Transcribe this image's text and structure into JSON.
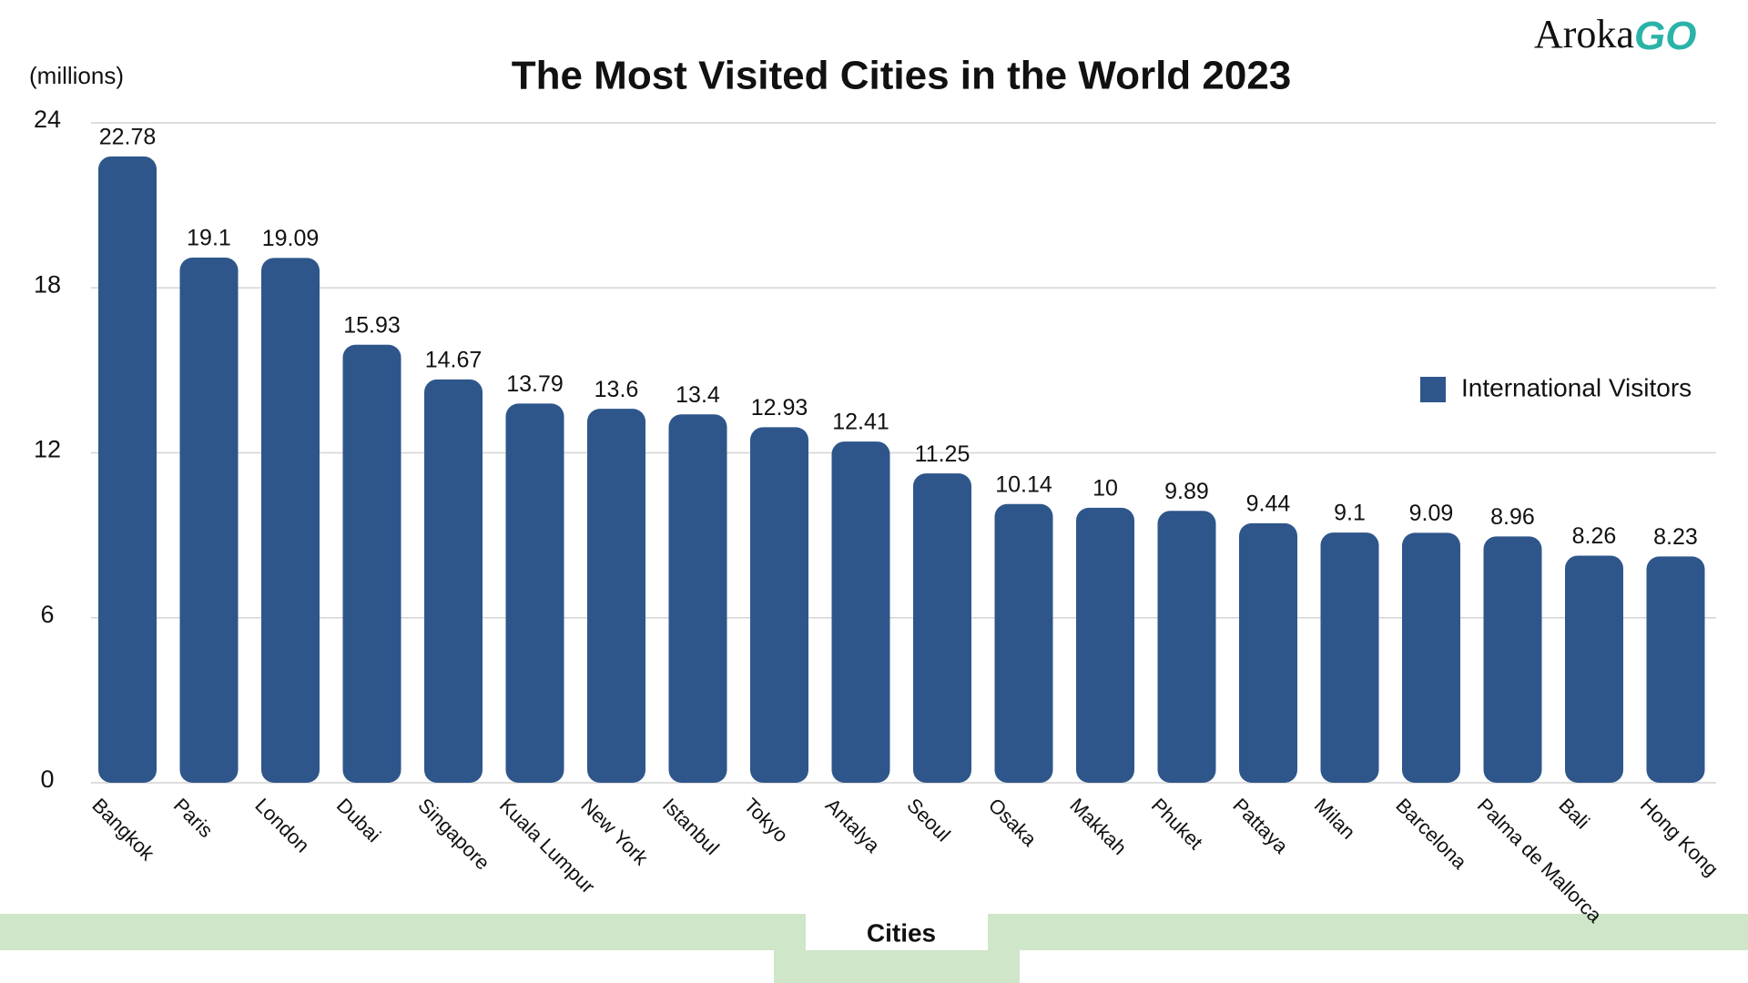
{
  "chart_data": {
    "type": "bar",
    "title": "The Most Visited Cities in the World 2023",
    "y_label": "(millions)",
    "x_label": "Cities",
    "logo": {
      "text": "Aroka",
      "accent": "GO"
    },
    "categories": [
      "Bangkok",
      "Paris",
      "London",
      "Dubai",
      "Singapore",
      "Kuala Lumpur",
      "New York",
      "Istanbul",
      "Tokyo",
      "Antalya",
      "Seoul",
      "Osaka",
      "Makkah",
      "Phuket",
      "Pattaya",
      "Milan",
      "Barcelona",
      "Palma de Mallorca",
      "Bali",
      "Hong Kong"
    ],
    "series": [
      {
        "name": "International Visitors",
        "color": "#2e568b",
        "values": [
          22.78,
          19.1,
          19.09,
          15.93,
          14.67,
          13.79,
          13.6,
          13.4,
          12.93,
          12.41,
          11.25,
          10.14,
          10,
          9.89,
          9.44,
          9.1,
          9.09,
          8.96,
          8.26,
          8.23
        ]
      }
    ],
    "ylim": [
      0,
      24
    ],
    "yticks": [
      0,
      6,
      12,
      18,
      24
    ],
    "grid": true,
    "legend": "right"
  }
}
